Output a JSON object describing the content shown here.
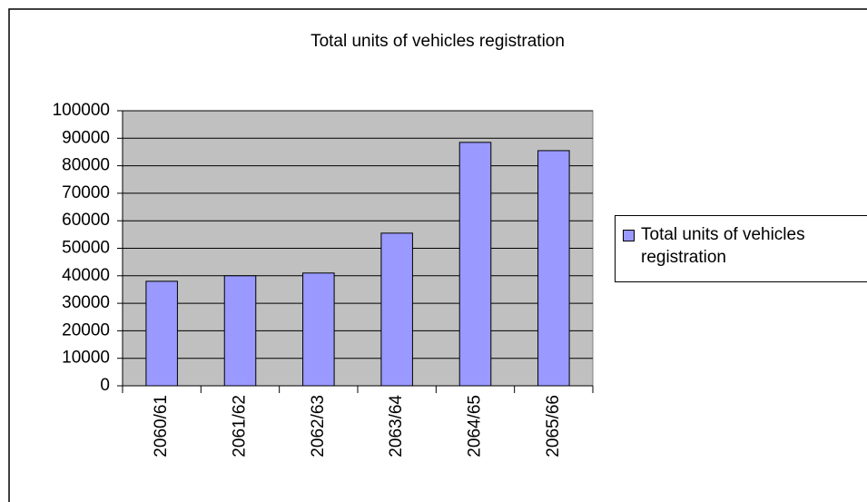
{
  "chart_data": {
    "type": "bar",
    "title": "Total units of vehicles registration",
    "categories": [
      "2060/61",
      "2061/62",
      "2062/63",
      "2063/64",
      "2064/65",
      "2065/66"
    ],
    "series": [
      {
        "name": "Total units of vehicles registration",
        "color": "#9999ff",
        "values": [
          38000,
          40000,
          41000,
          55500,
          88500,
          85500
        ]
      }
    ],
    "ylim": [
      0,
      100000
    ],
    "yticks": [
      0,
      10000,
      20000,
      30000,
      40000,
      50000,
      60000,
      70000,
      80000,
      90000,
      100000
    ],
    "grid": true,
    "plot_background": "#c0c0c0",
    "legend": "right"
  }
}
